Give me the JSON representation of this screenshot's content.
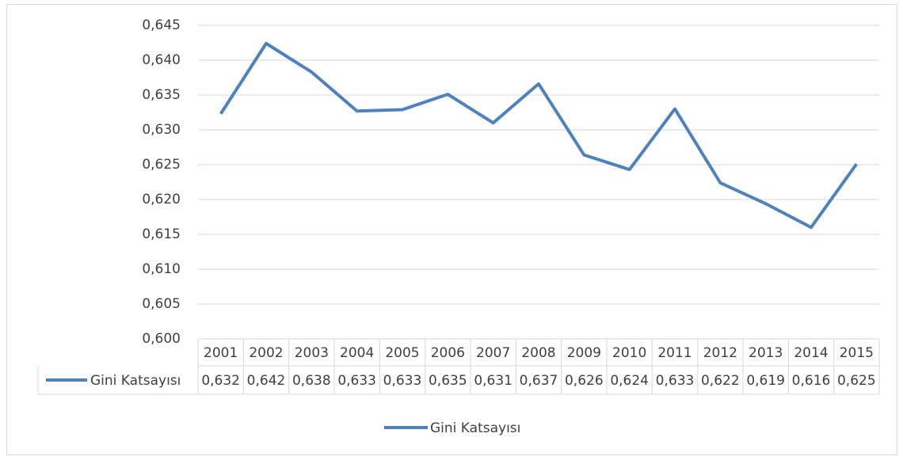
{
  "chart_data": {
    "type": "line",
    "categories": [
      "2001",
      "2002",
      "2003",
      "2004",
      "2005",
      "2006",
      "2007",
      "2008",
      "2009",
      "2010",
      "2011",
      "2012",
      "2013",
      "2014",
      "2015"
    ],
    "series": [
      {
        "name": "Gini Katsayısı",
        "color": "#4f81bd",
        "values": [
          0.6323,
          0.6424,
          0.6383,
          0.6327,
          0.6329,
          0.6351,
          0.631,
          0.6366,
          0.6264,
          0.6243,
          0.633,
          0.6224,
          0.6194,
          0.616,
          0.6251
        ],
        "value_labels": [
          "0,632",
          "0,642",
          "0,638",
          "0,633",
          "0,633",
          "0,635",
          "0,631",
          "0,637",
          "0,626",
          "0,624",
          "0,633",
          "0,622",
          "0,619",
          "0,616",
          "0,625"
        ]
      }
    ],
    "ylim": [
      0.6,
      0.645
    ],
    "yticks": [
      {
        "value": 0.6,
        "label": "0,600"
      },
      {
        "value": 0.605,
        "label": "0,605"
      },
      {
        "value": 0.61,
        "label": "0,610"
      },
      {
        "value": 0.615,
        "label": "0,615"
      },
      {
        "value": 0.62,
        "label": "0,620"
      },
      {
        "value": 0.625,
        "label": "0,625"
      },
      {
        "value": 0.63,
        "label": "0,630"
      },
      {
        "value": 0.635,
        "label": "0,635"
      },
      {
        "value": 0.64,
        "label": "0,640"
      },
      {
        "value": 0.645,
        "label": "0,645"
      }
    ],
    "grid": true,
    "legend": "bottom"
  }
}
